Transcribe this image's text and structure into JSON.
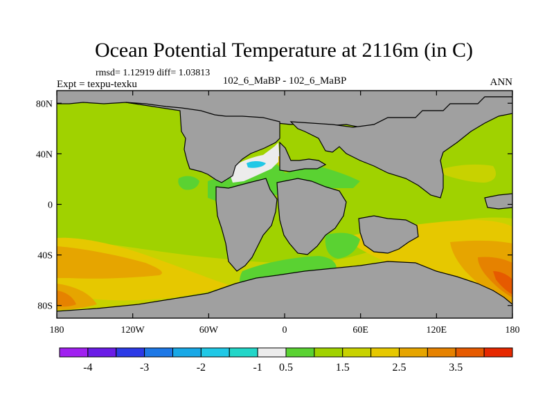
{
  "title": "Ocean Potential Temperature at 2116m (in C)",
  "stats_line": "rmsd= 1.12919  diff= 1.03813",
  "left_string": "Expt = texpu-texku",
  "center_string": "102_6_MaBP - 102_6_MaBP",
  "right_string": "ANN",
  "map": {
    "lon_ticks": [
      {
        "value": -180,
        "label": "180"
      },
      {
        "value": -120,
        "label": "120W"
      },
      {
        "value": -60,
        "label": "60W"
      },
      {
        "value": 0,
        "label": "0"
      },
      {
        "value": 60,
        "label": "60E"
      },
      {
        "value": 120,
        "label": "120E"
      },
      {
        "value": 180,
        "label": "180"
      }
    ],
    "lat_ticks": [
      {
        "value": 80,
        "label": "80N"
      },
      {
        "value": 40,
        "label": "40N"
      },
      {
        "value": 0,
        "label": "0"
      },
      {
        "value": -40,
        "label": "40S"
      },
      {
        "value": -80,
        "label": "80S"
      }
    ],
    "lon_range": [
      -180,
      180
    ],
    "lat_range": [
      -90,
      90
    ],
    "land_color": "#a0a0a0",
    "background_field_color": "#a0d200"
  },
  "colorbar": {
    "colors": [
      "#a020f0",
      "#6a1ce6",
      "#2c3ae6",
      "#1e78e6",
      "#18a8e6",
      "#20c8e6",
      "#22d6c8",
      "#ececec",
      "#5ad232",
      "#a0d200",
      "#c8d200",
      "#e6c800",
      "#e6a500",
      "#e68200",
      "#e65a00",
      "#e62800"
    ],
    "labels": [
      {
        "after_box": 1,
        "text": "-4"
      },
      {
        "after_box": 3,
        "text": "-3"
      },
      {
        "after_box": 5,
        "text": "-2"
      },
      {
        "after_box": 7,
        "text": "-1"
      },
      {
        "after_box": 8,
        "text": "0.5"
      },
      {
        "after_box": 10,
        "text": "1.5"
      },
      {
        "after_box": 12,
        "text": "2.5"
      },
      {
        "after_box": 14,
        "text": "3.5"
      }
    ]
  }
}
